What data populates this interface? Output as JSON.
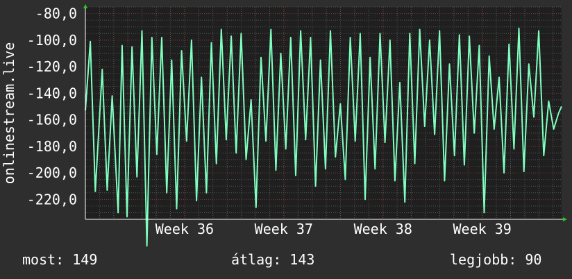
{
  "colors": {
    "background": "#2e2e2e",
    "canvas": "#1f1f1f",
    "grid_major": "#7a3a3a",
    "grid_minor": "#555555",
    "line": "#7fffbf",
    "text": "#ffffff",
    "axis_arrow": "#22cc22"
  },
  "stats": {
    "current": "most: 149",
    "average": "átlag: 143",
    "max": "legjobb: 90"
  },
  "chart_data": {
    "type": "line",
    "ylabel": "onlinestream.live",
    "ylim": [
      -235,
      -75
    ],
    "yticks": [
      -80,
      -100,
      -120,
      -140,
      -160,
      -180,
      -200,
      -220
    ],
    "ytick_labels": [
      "-80,0",
      "-100,0",
      "-120,0",
      "-140,0",
      "-160,0",
      "-180,0",
      "-200,0",
      "-220,0"
    ],
    "xlim": [
      35.0,
      39.8
    ],
    "xticks": [
      36,
      37,
      38,
      39
    ],
    "xtick_labels": [
      "Week 36",
      "Week 37",
      "Week 38",
      "Week 39"
    ],
    "grid": true,
    "series": [
      {
        "x": [
          35.0,
          35.05,
          35.1,
          35.17,
          35.22,
          35.27,
          35.33,
          35.37,
          35.42,
          35.47,
          35.52,
          35.57,
          35.62,
          35.67,
          35.72,
          35.77,
          35.82,
          35.87,
          35.92,
          35.97,
          36.02,
          36.07,
          36.12,
          36.17,
          36.22,
          36.27,
          36.32,
          36.37,
          36.42,
          36.47,
          36.52,
          36.57,
          36.62,
          36.67,
          36.72,
          36.77,
          36.82,
          36.87,
          36.92,
          36.97,
          37.02,
          37.07,
          37.12,
          37.17,
          37.22,
          37.27,
          37.32,
          37.37,
          37.42,
          37.47,
          37.52,
          37.57,
          37.62,
          37.67,
          37.72,
          37.77,
          37.82,
          37.87,
          37.92,
          37.97,
          38.02,
          38.07,
          38.12,
          38.17,
          38.22,
          38.27,
          38.32,
          38.37,
          38.42,
          38.47,
          38.52,
          38.57,
          38.62,
          38.67,
          38.72,
          38.77,
          38.82,
          38.87,
          38.92,
          38.97,
          39.02,
          39.07,
          39.12,
          39.17,
          39.22,
          39.27,
          39.32,
          39.37,
          39.42,
          39.47,
          39.52,
          39.57,
          39.62,
          39.67,
          39.72,
          39.77,
          39.8
        ],
        "y": [
          -153,
          -101,
          -214,
          -122,
          -213,
          -142,
          -230,
          -104,
          -233,
          -105,
          -203,
          -93,
          -255,
          -98,
          -186,
          -98,
          -215,
          -115,
          -227,
          -108,
          -176,
          -100,
          -221,
          -128,
          -215,
          -102,
          -193,
          -92,
          -175,
          -97,
          -185,
          -95,
          -190,
          -145,
          -226,
          -113,
          -176,
          -92,
          -198,
          -110,
          -182,
          -98,
          -202,
          -93,
          -175,
          -98,
          -210,
          -115,
          -197,
          -93,
          -188,
          -148,
          -205,
          -98,
          -176,
          -95,
          -220,
          -113,
          -197,
          -95,
          -177,
          -100,
          -206,
          -132,
          -222,
          -95,
          -193,
          -92,
          -165,
          -100,
          -171,
          -93,
          -206,
          -118,
          -187,
          -96,
          -194,
          -97,
          -170,
          -104,
          -230,
          -112,
          -167,
          -128,
          -200,
          -103,
          -182,
          -91,
          -199,
          -118,
          -158,
          -93,
          -187,
          -146,
          -167,
          -155,
          -150
        ]
      }
    ]
  }
}
